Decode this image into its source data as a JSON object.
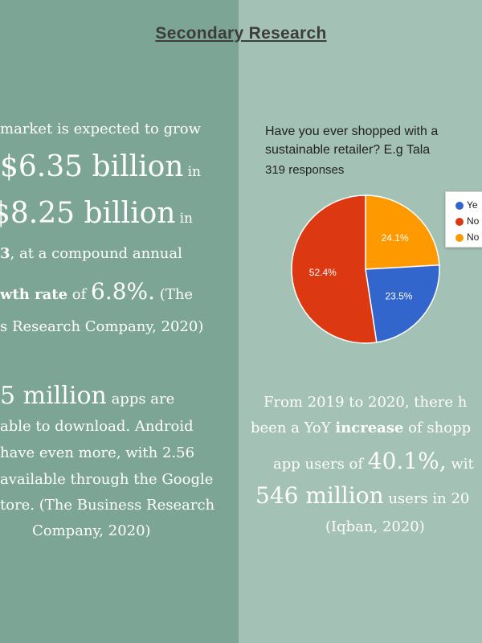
{
  "title": "Secondary Research",
  "left": {
    "para1": {
      "l1": "market is expected to grow",
      "l2_big": "$6.35 billion",
      "l2_small": "in",
      "l3_big": "$8.25 billion",
      "l3_small": "in",
      "l4_bold": "3",
      "l4_rest": ", at a compound annual",
      "l5_bold": "wth rate",
      "l5_mid": " of ",
      "l5_big": "6.8%.",
      "l5_tail": " (The",
      "l6": "s Research Company, 2020)"
    },
    "para2": {
      "l1_big": "5 million",
      "l1_small": " apps are",
      "l2": "able to download. Android",
      "l3": "have even more, with 2.56",
      "l4": "available through the Google",
      "l5": "tore. (The Business Research",
      "l6": "Company, 2020)"
    }
  },
  "right": {
    "question_l1": "Have you ever shopped with a",
    "question_l2": "sustainable retailer? E.g Tala",
    "responses": "319 responses",
    "stat": {
      "l1": "From 2019 to 2020, there h",
      "l2_pre": "been a YoY ",
      "l2_bold": "increase",
      "l2_post": " of shopp",
      "l3_pre": "app users of ",
      "l3_big": "40.1%,",
      "l3_post": " wit",
      "l4_big": "546 million",
      "l4_post": " users in 20",
      "l5": "(Iqban, 2020)"
    }
  },
  "chart_data": {
    "type": "pie",
    "title": "Have you ever shopped with a sustainable retailer? E.g Tala",
    "subtitle": "319 responses",
    "slices": [
      {
        "label": "Ye",
        "value": 23.5,
        "color": "#3366cc",
        "label_text": "23.5%"
      },
      {
        "label": "No",
        "value": 52.4,
        "color": "#dc3912",
        "label_text": "52.4%"
      },
      {
        "label": "No",
        "value": 24.1,
        "color": "#ff9900",
        "label_text": "24.1%"
      }
    ],
    "legend": "top-right"
  }
}
